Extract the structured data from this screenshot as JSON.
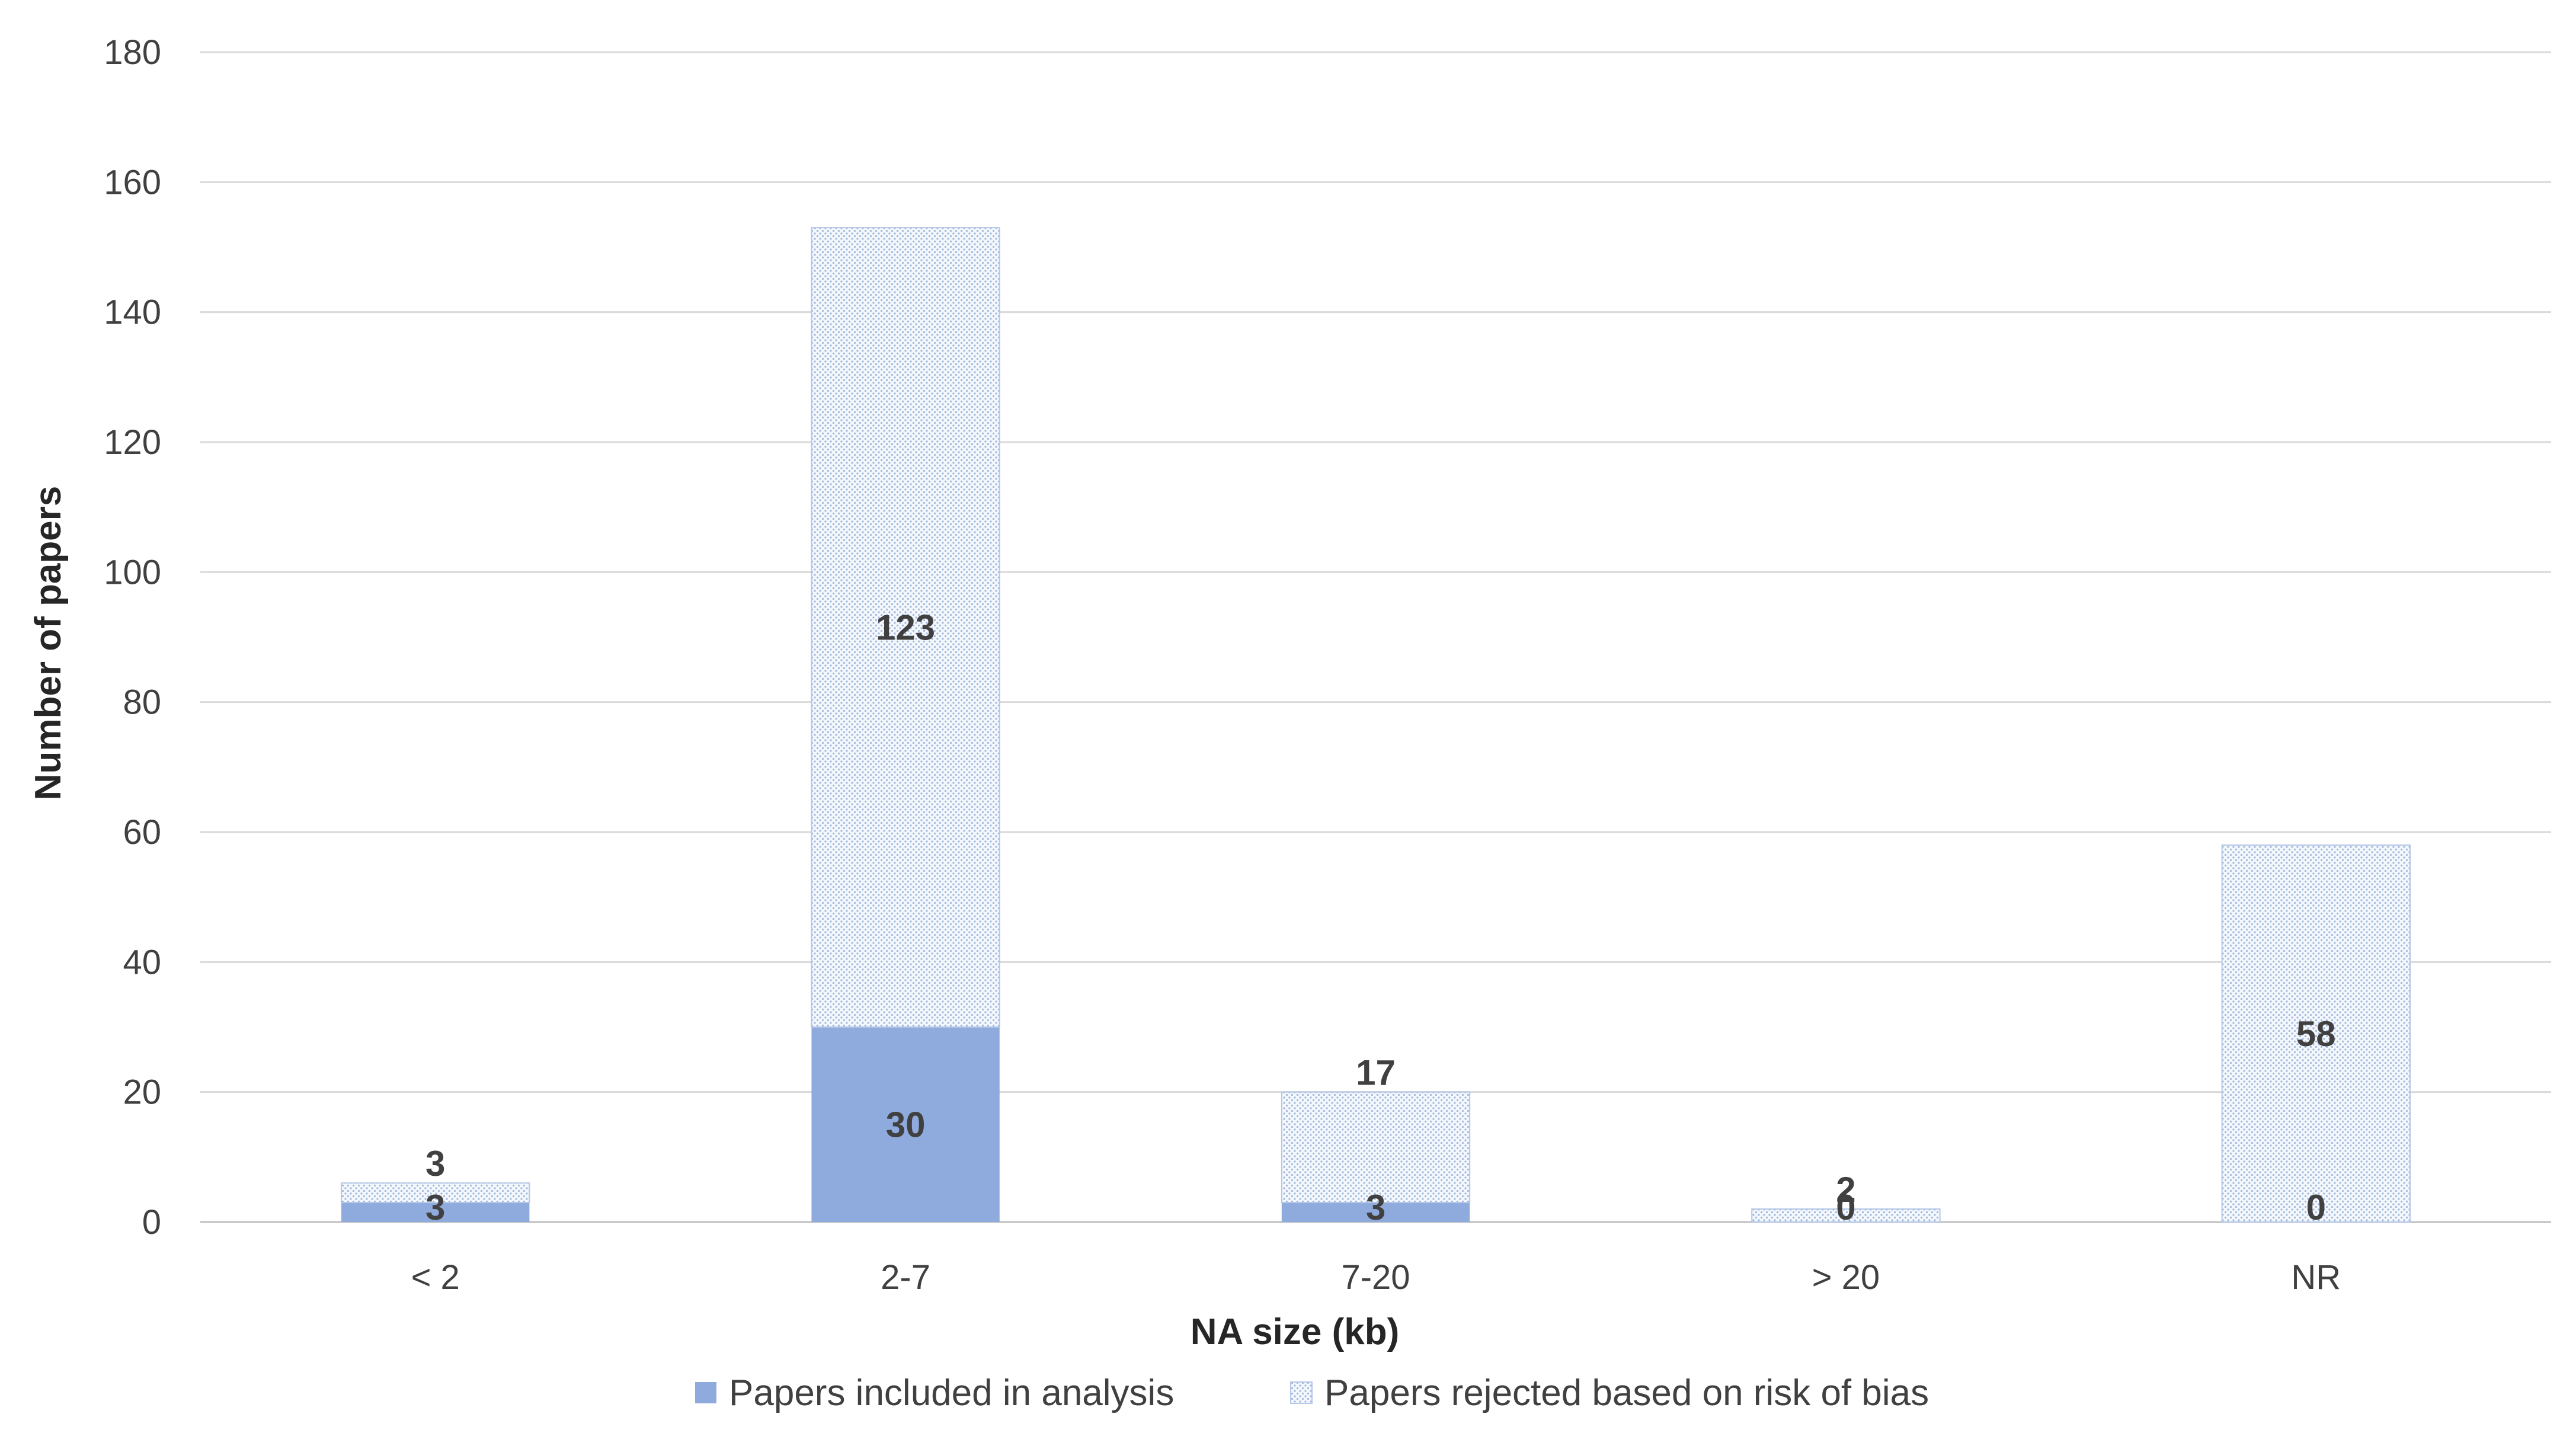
{
  "chart_data": {
    "type": "bar",
    "stacked": true,
    "xlabel": "NA size (kb)",
    "ylabel": "Number of papers",
    "ylim": [
      0,
      180
    ],
    "yticks": [
      0,
      20,
      40,
      60,
      80,
      100,
      120,
      140,
      160,
      180
    ],
    "grid": true,
    "legend_position": "bottom",
    "categories": [
      "< 2",
      "2-7",
      "7-20",
      "> 20",
      "NR"
    ],
    "series": [
      {
        "name": "Papers included in analysis",
        "values": [
          3,
          30,
          3,
          0,
          0
        ],
        "color": "#8faadc",
        "pattern": "solid"
      },
      {
        "name": "Papers rejected based on risk of bias",
        "values": [
          3,
          123,
          17,
          2,
          58
        ],
        "color": "#b4c7e7",
        "pattern": "dotted"
      }
    ]
  }
}
